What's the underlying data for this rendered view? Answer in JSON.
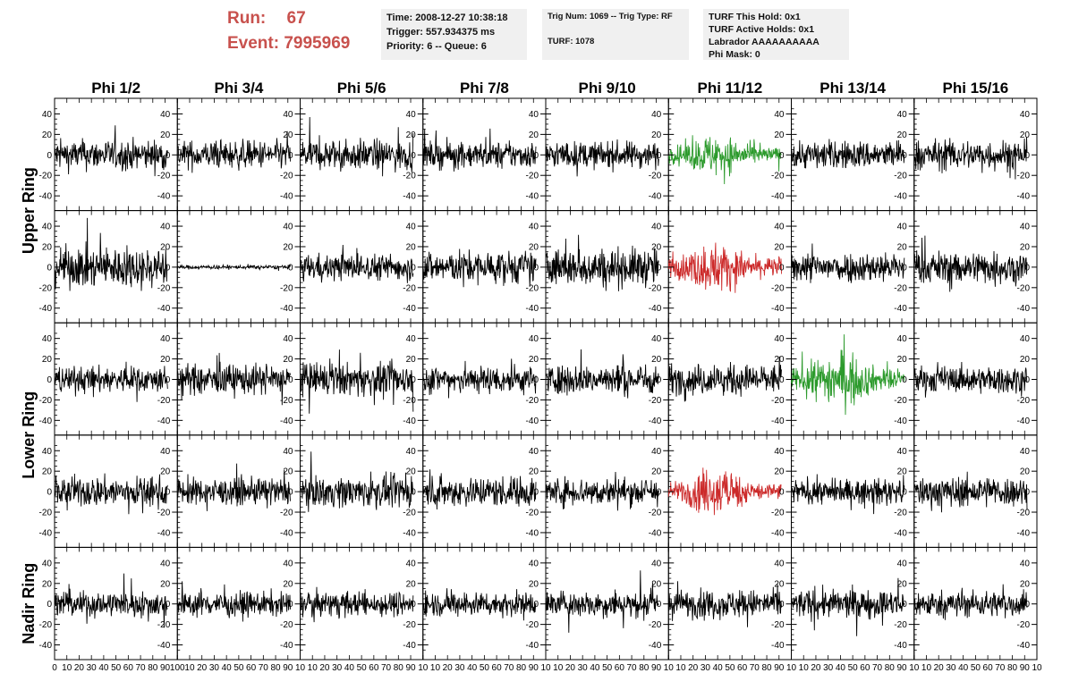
{
  "header": {
    "run_label": "Run:",
    "run_value": "67",
    "event_label": "Event:",
    "event_value": "7995969",
    "time": "Time: 2008-12-27 10:38:18",
    "trigger": "Trigger: 557.934375 ms",
    "priority": "Priority: 6 -- Queue: 6",
    "trig_num": "Trig Num: 1069 -- Trig Type: RF",
    "turf": "TURF: 1078",
    "turf_this_hold": "TURF This Hold: 0x1",
    "turf_active_holds": "TURF Active Holds: 0x1",
    "labrador": "Labrador AAAAAAAAAA",
    "phi_mask": "Phi Mask: 0"
  },
  "chart_data": {
    "type": "line",
    "columns": [
      "Phi 1/2",
      "Phi 3/4",
      "Phi 5/6",
      "Phi 7/8",
      "Phi 9/10",
      "Phi 11/12",
      "Phi 13/14",
      "Phi 15/16"
    ],
    "row_groups": [
      {
        "label": "Upper Ring",
        "rows": [
          0,
          1
        ]
      },
      {
        "label": "Lower Ring",
        "rows": [
          2,
          3
        ]
      },
      {
        "label": "Nadir Ring",
        "rows": [
          4
        ]
      }
    ],
    "xlim": [
      0,
      100
    ],
    "ylim": [
      -50,
      50
    ],
    "x_ticks": [
      0,
      10,
      20,
      30,
      40,
      50,
      60,
      70,
      80,
      90,
      100
    ],
    "y_ticks": [
      -40,
      -20,
      0,
      20,
      40
    ],
    "x_tick_labels_first": [
      "0",
      "10",
      "20",
      "30",
      "40",
      "50",
      "60",
      "70",
      "80",
      "90",
      "100"
    ],
    "x_tick_labels_rest": [
      "10",
      "20",
      "30",
      "40",
      "50",
      "60",
      "70",
      "80",
      "90",
      "10"
    ],
    "waveform_samples": 260,
    "waveform_x_end": 92,
    "colors": {
      "normal": "#000000",
      "green": "#2c9a2c",
      "red": "#cc2a2a"
    },
    "panels": [
      {
        "row": 0,
        "col": 0,
        "amp": 15,
        "color": "normal"
      },
      {
        "row": 0,
        "col": 1,
        "amp": 14,
        "color": "normal"
      },
      {
        "row": 0,
        "col": 2,
        "amp": 15,
        "color": "normal"
      },
      {
        "row": 0,
        "col": 3,
        "amp": 13,
        "color": "normal"
      },
      {
        "row": 0,
        "col": 4,
        "amp": 13,
        "color": "normal"
      },
      {
        "row": 0,
        "col": 5,
        "amp": 15,
        "color": "green"
      },
      {
        "row": 0,
        "col": 6,
        "amp": 14,
        "color": "normal"
      },
      {
        "row": 0,
        "col": 7,
        "amp": 15,
        "color": "normal"
      },
      {
        "row": 1,
        "col": 0,
        "amp": 20,
        "color": "normal"
      },
      {
        "row": 1,
        "col": 1,
        "amp": 2,
        "color": "normal"
      },
      {
        "row": 1,
        "col": 2,
        "amp": 13,
        "color": "normal"
      },
      {
        "row": 1,
        "col": 3,
        "amp": 16,
        "color": "normal"
      },
      {
        "row": 1,
        "col": 4,
        "amp": 19,
        "color": "normal"
      },
      {
        "row": 1,
        "col": 5,
        "amp": 18,
        "color": "red"
      },
      {
        "row": 1,
        "col": 6,
        "amp": 15,
        "color": "normal"
      },
      {
        "row": 1,
        "col": 7,
        "amp": 16,
        "color": "normal"
      },
      {
        "row": 2,
        "col": 0,
        "amp": 13,
        "color": "normal"
      },
      {
        "row": 2,
        "col": 1,
        "amp": 15,
        "color": "normal"
      },
      {
        "row": 2,
        "col": 2,
        "amp": 16,
        "color": "normal"
      },
      {
        "row": 2,
        "col": 3,
        "amp": 14,
        "color": "normal"
      },
      {
        "row": 2,
        "col": 4,
        "amp": 15,
        "color": "normal"
      },
      {
        "row": 2,
        "col": 5,
        "amp": 15,
        "color": "normal"
      },
      {
        "row": 2,
        "col": 6,
        "amp": 20,
        "color": "green"
      },
      {
        "row": 2,
        "col": 7,
        "amp": 13,
        "color": "normal"
      },
      {
        "row": 3,
        "col": 0,
        "amp": 15,
        "color": "normal"
      },
      {
        "row": 3,
        "col": 1,
        "amp": 13,
        "color": "normal"
      },
      {
        "row": 3,
        "col": 2,
        "amp": 15,
        "color": "normal"
      },
      {
        "row": 3,
        "col": 3,
        "amp": 15,
        "color": "normal"
      },
      {
        "row": 3,
        "col": 4,
        "amp": 14,
        "color": "normal"
      },
      {
        "row": 3,
        "col": 5,
        "amp": 17,
        "color": "red"
      },
      {
        "row": 3,
        "col": 6,
        "amp": 12,
        "color": "normal"
      },
      {
        "row": 3,
        "col": 7,
        "amp": 15,
        "color": "normal"
      },
      {
        "row": 4,
        "col": 0,
        "amp": 13,
        "color": "normal"
      },
      {
        "row": 4,
        "col": 1,
        "amp": 12,
        "color": "normal"
      },
      {
        "row": 4,
        "col": 2,
        "amp": 12,
        "color": "normal"
      },
      {
        "row": 4,
        "col": 3,
        "amp": 12,
        "color": "normal"
      },
      {
        "row": 4,
        "col": 4,
        "amp": 13,
        "color": "normal"
      },
      {
        "row": 4,
        "col": 5,
        "amp": 14,
        "color": "normal"
      },
      {
        "row": 4,
        "col": 6,
        "amp": 14,
        "color": "normal"
      },
      {
        "row": 4,
        "col": 7,
        "amp": 13,
        "color": "normal"
      }
    ]
  }
}
